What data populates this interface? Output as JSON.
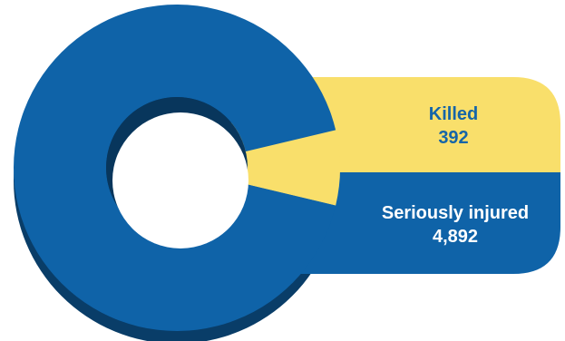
{
  "chart_data": {
    "type": "pie",
    "style": "donut-3d",
    "slices": [
      {
        "label": "Killed",
        "value": 392,
        "value_text": "392",
        "color": "#f9df6b",
        "label_color": "#1565a8"
      },
      {
        "label": "Seriously injured",
        "value": 4892,
        "value_text": "4,892",
        "color": "#0f63a8",
        "label_color": "#ffffff"
      }
    ],
    "title": "",
    "legend": "callout-right"
  }
}
